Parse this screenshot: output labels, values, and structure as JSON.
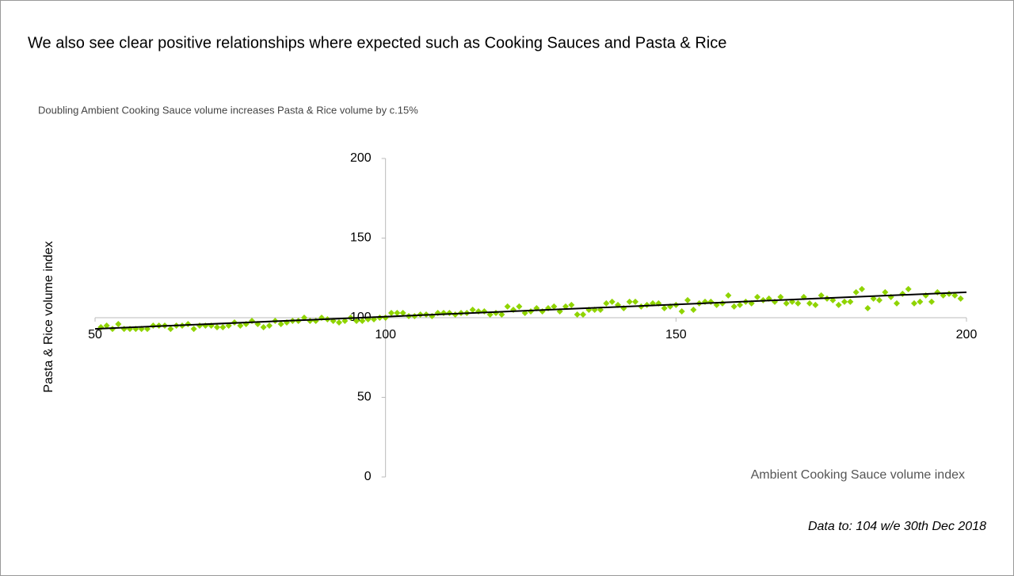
{
  "chart_data": {
    "type": "scatter",
    "title": "We also see clear positive relationships where expected such as Cooking Sauces and Pasta & Rice",
    "subtitle": "Doubling Ambient Cooking Sauce volume increases Pasta & Rice volume by c.15%",
    "x_label": "Ambient Cooking Sauce volume index",
    "y_label": "Pasta & Rice volume index",
    "annotation": "Data to: 104 w/e 30th Dec 2018",
    "xlim": [
      50,
      200
    ],
    "ylim": [
      0,
      200
    ],
    "xticks": [
      50,
      100,
      150,
      200
    ],
    "yticks": [
      0,
      50,
      100,
      150,
      200
    ],
    "x_axis_crosses_at": 100,
    "y_axis_crosses_at": 100,
    "points": {
      "color": "#8fd400",
      "x": [
        51,
        52,
        53,
        54,
        55,
        56,
        57,
        58,
        59,
        60,
        61,
        62,
        63,
        64,
        65,
        66,
        67,
        68,
        69,
        70,
        71,
        72,
        73,
        74,
        75,
        76,
        77,
        78,
        79,
        80,
        81,
        82,
        83,
        84,
        85,
        86,
        87,
        88,
        89,
        90,
        91,
        92,
        93,
        94,
        95,
        96,
        97,
        98,
        99,
        100,
        101,
        102,
        103,
        104,
        105,
        106,
        107,
        108,
        109,
        110,
        111,
        112,
        113,
        114,
        115,
        116,
        117,
        118,
        119,
        120,
        121,
        122,
        123,
        124,
        125,
        126,
        127,
        128,
        129,
        130,
        131,
        132,
        133,
        134,
        135,
        136,
        137,
        138,
        139,
        140,
        141,
        142,
        143,
        144,
        145,
        146,
        147,
        148,
        149,
        150,
        151,
        152,
        153,
        154,
        155,
        156,
        157,
        158,
        159,
        160,
        161,
        162,
        163,
        164,
        165,
        166,
        167,
        168,
        169,
        170,
        171,
        172,
        173,
        174,
        175,
        176,
        177,
        178,
        179,
        180,
        181,
        182,
        183,
        184,
        185,
        186,
        187,
        188,
        189,
        190,
        191,
        192,
        193,
        194,
        195,
        196,
        197,
        198,
        199
      ],
      "y": [
        94,
        95,
        93,
        96,
        93,
        93,
        93,
        93,
        93,
        95,
        95,
        95,
        93,
        95,
        95,
        96,
        93,
        95,
        95,
        95,
        94,
        94,
        95,
        97,
        95,
        96,
        98,
        96,
        94,
        95,
        98,
        96,
        97,
        98,
        98,
        100,
        98,
        98,
        100,
        99,
        98,
        97,
        98,
        100,
        98,
        98,
        99,
        99,
        100,
        100,
        103,
        103,
        103,
        101,
        101,
        102,
        102,
        101,
        103,
        103,
        103,
        102,
        103,
        103,
        105,
        104,
        104,
        102,
        103,
        102,
        107,
        105,
        107,
        103,
        104,
        106,
        104,
        106,
        107,
        104,
        107,
        108,
        102,
        102,
        105,
        105,
        105,
        109,
        110,
        108,
        106,
        110,
        110,
        107,
        108,
        109,
        109,
        106,
        107,
        108,
        104,
        111,
        105,
        109,
        110,
        110,
        108,
        109,
        114,
        107,
        108,
        110,
        109,
        113,
        111,
        112,
        110,
        113,
        109,
        110,
        109,
        113,
        109,
        108,
        114,
        112,
        111,
        108,
        110,
        110,
        116,
        118,
        106,
        112,
        111,
        116,
        113,
        109,
        115,
        118,
        109,
        110,
        114,
        110,
        116,
        114,
        115,
        114,
        112
      ]
    },
    "trendline": {
      "color": "#000000",
      "x": [
        50,
        200
      ],
      "y": [
        93,
        116
      ]
    }
  }
}
